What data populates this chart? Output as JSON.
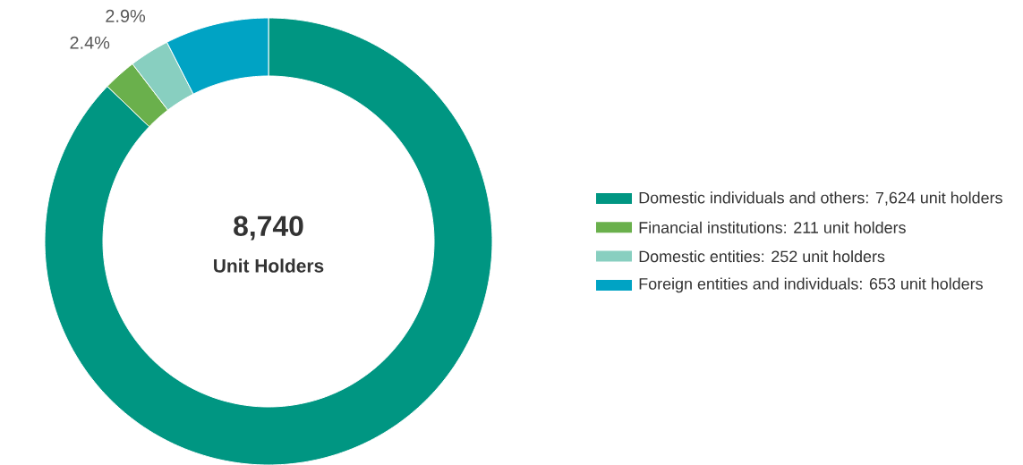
{
  "chart_data": {
    "type": "donut",
    "categories": [
      "Domestic individuals and others: 7,624 unit holders",
      "Financial institutions: 211 unit holders",
      "Domestic entities: 252 unit holders",
      "Foreign entities and individuals: 653 unit holders"
    ],
    "values": [
      87.2,
      2.4,
      2.9,
      7.5
    ],
    "colors": [
      "#009682",
      "#6ab04c",
      "#88cfc0",
      "#00a3c4"
    ],
    "value_labels": [
      null,
      "2.4%",
      "2.9%",
      null
    ],
    "annotations": [
      "8,740",
      "Unit Holders"
    ],
    "legend": "right"
  }
}
